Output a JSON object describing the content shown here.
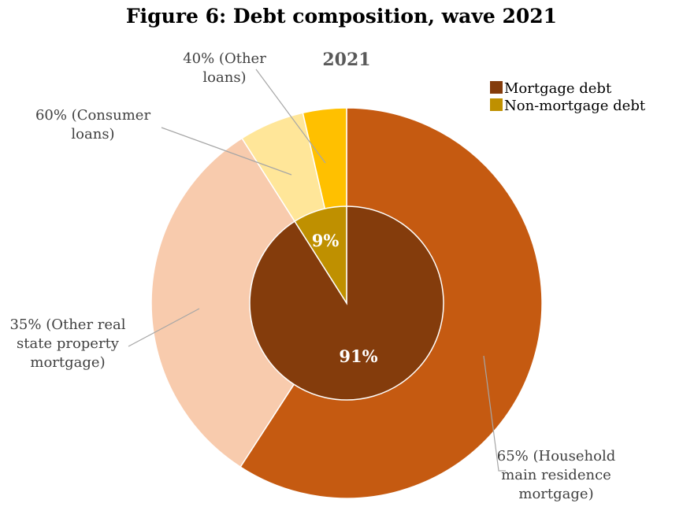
{
  "figure_title": "Figure 6: Debt composition, wave 2021",
  "chart_data": {
    "type": "pie",
    "title": "2021",
    "legend_position": "top-right",
    "inner_ring": [
      {
        "name": "Mortgage debt",
        "value": 91,
        "label": "91%",
        "color": "#843c0c"
      },
      {
        "name": "Non-mortgage debt",
        "value": 9,
        "label": "9%",
        "color": "#bf9000"
      }
    ],
    "outer_ring": [
      {
        "label_lines": [
          "65% (Household",
          "main residence",
          "mortgage)"
        ],
        "share": 59.15,
        "color": "#c55a11"
      },
      {
        "label_lines": [
          "35% (Other real",
          "state property",
          "mortgage)"
        ],
        "share": 31.85,
        "color": "#f8cbad"
      },
      {
        "label_lines": [
          "60% (Consumer",
          "loans)"
        ],
        "share": 5.4,
        "color": "#ffe699"
      },
      {
        "label_lines": [
          "40% (Other",
          "loans)"
        ],
        "share": 3.6,
        "color": "#ffc000"
      }
    ],
    "legend": [
      {
        "label": "Mortgage debt",
        "color": "#843c0c"
      },
      {
        "label": "Non-mortgage debt",
        "color": "#bf9000"
      }
    ]
  }
}
